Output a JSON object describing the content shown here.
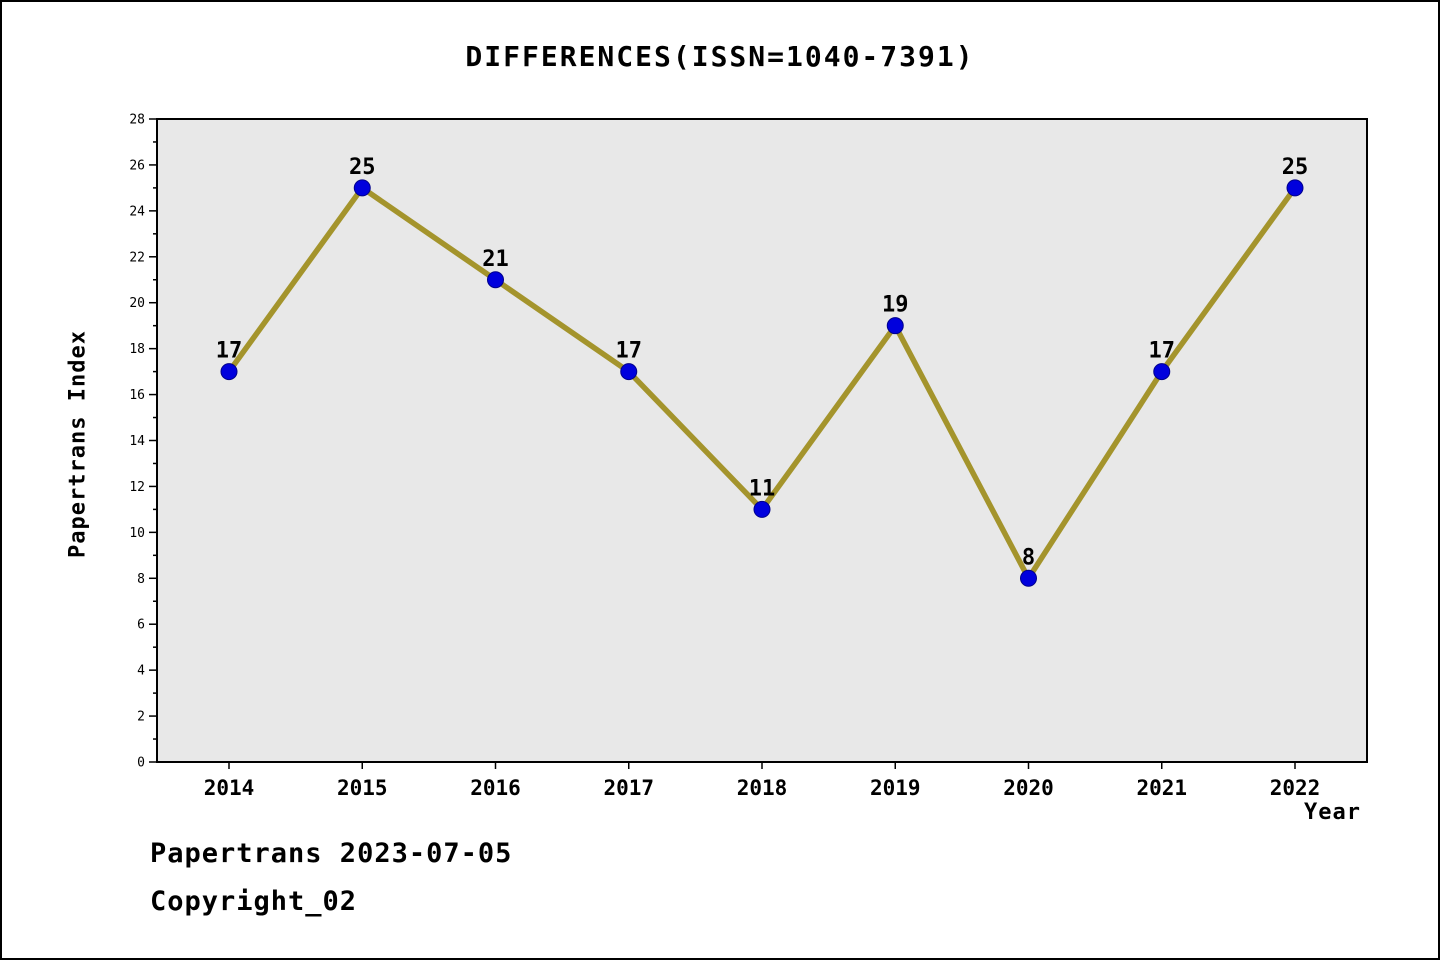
{
  "title": "DIFFERENCES(ISSN=1040-7391)",
  "footer": {
    "line1": "Papertrans 2023-07-05",
    "line2": "Copyright_02"
  },
  "chart_data": {
    "type": "line",
    "title": "DIFFERENCES(ISSN=1040-7391)",
    "x": [
      2014,
      2015,
      2016,
      2017,
      2018,
      2019,
      2020,
      2021,
      2022
    ],
    "values": [
      17,
      25,
      21,
      17,
      11,
      19,
      8,
      17,
      25
    ],
    "xlabel": "Year",
    "ylabel": "Papertrans Index",
    "ylim": [
      0,
      28
    ],
    "ytick_major_step": 2,
    "ytick_minor_step": 1,
    "grid": false,
    "legend": null,
    "line_color": "#a4942c",
    "marker_color": "#0000dd",
    "marker_edge_color": "#00008b",
    "plot_bg": "#e8e8e8",
    "axis_color": "#000000"
  }
}
